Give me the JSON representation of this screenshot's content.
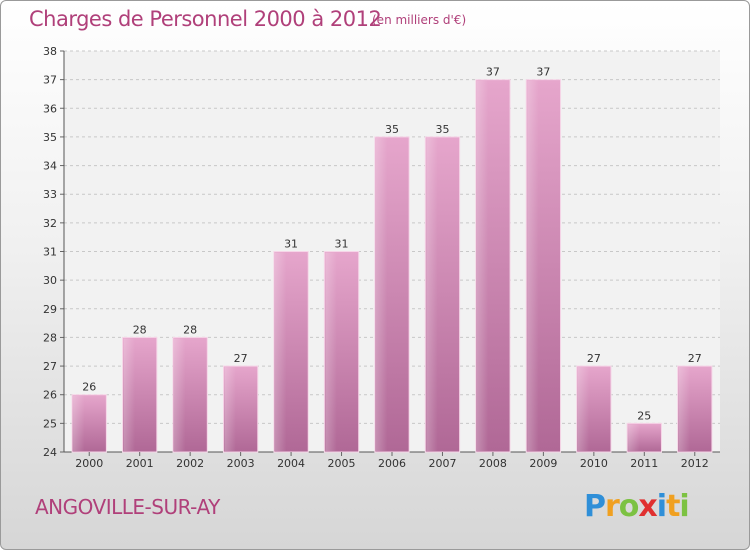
{
  "header": {
    "title": "Charges de Personnel 2000 à 2012",
    "subtitle": "(en milliers d'€)"
  },
  "footer": {
    "commune": "ANGOVILLE-SUR-AY",
    "logo": {
      "letters": [
        "P",
        "r",
        "o",
        "x",
        "i",
        "t",
        "i"
      ],
      "colors": [
        "#2f8fd8",
        "#f0a020",
        "#7cc242",
        "#e03030",
        "#2f8fd8",
        "#f0a020",
        "#7cc242"
      ]
    }
  },
  "colors": {
    "title": "#b0407a",
    "bar_top": "#e6a6cc",
    "bar_bottom": "#b06896",
    "grid": "#c8c8c8"
  },
  "chart_data": {
    "type": "bar",
    "categories": [
      "2000",
      "2001",
      "2002",
      "2003",
      "2004",
      "2005",
      "2006",
      "2007",
      "2008",
      "2009",
      "2010",
      "2011",
      "2012"
    ],
    "values": [
      26,
      28,
      28,
      27,
      31,
      31,
      35,
      35,
      37,
      37,
      27,
      25,
      27
    ],
    "yticks": [
      24,
      25,
      26,
      27,
      28,
      29,
      30,
      31,
      32,
      33,
      34,
      35,
      36,
      37,
      38
    ],
    "ylim": [
      24,
      38
    ],
    "grid": true,
    "data_labels": true
  }
}
